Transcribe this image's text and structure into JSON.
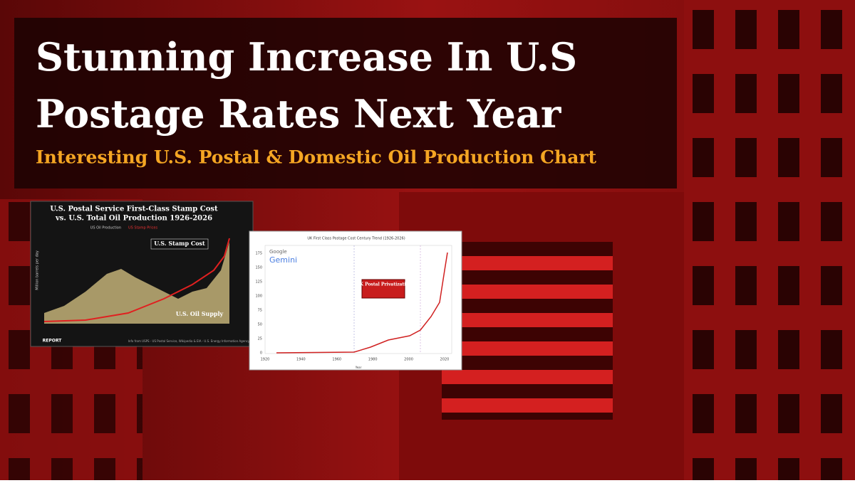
{
  "header": {
    "title_line1": "Stunning Increase In U.S",
    "title_line2": "Postage Rates Next Year",
    "subtitle": "Interesting U.S. Postal & Domestic Oil Production Chart"
  },
  "us_chart": {
    "title_line1": "U.S. Postal Service First-Class Stamp Cost",
    "title_line2": "vs. U.S. Total Oil Production 1926-2026",
    "legend": [
      "US Oil Production",
      "US Stamp Prices"
    ],
    "annotation_stamp": "U.S. Stamp Cost",
    "annotation_oil": "U.S. Oil Supply",
    "y_label": "Million barrels per day",
    "source": "Info from USPS - US Postal Service, Wikipedia & EIA - U.S. Energy Information Agency",
    "brand": "REPORT"
  },
  "uk_chart": {
    "title": "UK First Class Postage Cost Century Trend (1926-2026)",
    "brand1": "Google",
    "brand2": "Gemini",
    "annotation": "U.K Postal Privatization",
    "x_label": "Year",
    "x_ticks": [
      "1920",
      "1940",
      "1960",
      "1980",
      "2000",
      "2020"
    ],
    "y_ticks": [
      "0",
      "25",
      "50",
      "75",
      "100",
      "125",
      "150",
      "175"
    ]
  }
}
